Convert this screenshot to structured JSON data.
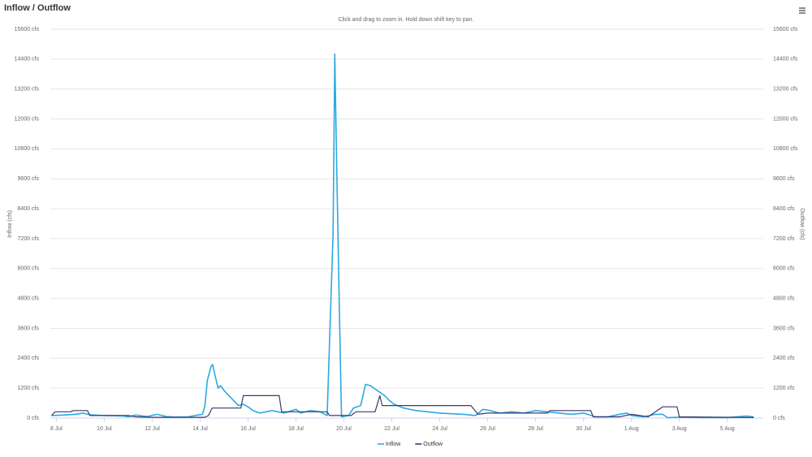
{
  "chart_data": {
    "type": "line",
    "title": "Inflow / Outflow",
    "subtitle": "Click and drag to zoom in. Hold down shift key to pan.",
    "y_label": "Inflow (cfs)",
    "y2_label": "Outflow (cfs)",
    "xlim": [
      7.75,
      37.5
    ],
    "xticks": [
      {
        "value": 8,
        "label": "8 Jul"
      },
      {
        "value": 10,
        "label": "10 Jul"
      },
      {
        "value": 12,
        "label": "12 Jul"
      },
      {
        "value": 14,
        "label": "14 Jul"
      },
      {
        "value": 16,
        "label": "16 Jul"
      },
      {
        "value": 18,
        "label": "18 Jul"
      },
      {
        "value": 20,
        "label": "20 Jul"
      },
      {
        "value": 22,
        "label": "22 Jul"
      },
      {
        "value": 24,
        "label": "24 Jul"
      },
      {
        "value": 26,
        "label": "26 Jul"
      },
      {
        "value": 28,
        "label": "28 Jul"
      },
      {
        "value": 30,
        "label": "30 Jul"
      },
      {
        "value": 32,
        "label": "1 Aug"
      },
      {
        "value": 34,
        "label": "3 Aug"
      },
      {
        "value": 36,
        "label": "5 Aug"
      }
    ],
    "ylim": [
      0,
      15600
    ],
    "yticks": [
      {
        "value": 0,
        "label": "0 cfs"
      },
      {
        "value": 1200,
        "label": "1200 cfs"
      },
      {
        "value": 2400,
        "label": "2400 cfs"
      },
      {
        "value": 3600,
        "label": "3600 cfs"
      },
      {
        "value": 4800,
        "label": "4800 cfs"
      },
      {
        "value": 6000,
        "label": "6000 cfs"
      },
      {
        "value": 7200,
        "label": "7200 cfs"
      },
      {
        "value": 8400,
        "label": "8400 cfs"
      },
      {
        "value": 9600,
        "label": "9600 cfs"
      },
      {
        "value": 10800,
        "label": "10800 cfs"
      },
      {
        "value": 12000,
        "label": "12000 cfs"
      },
      {
        "value": 13200,
        "label": "13200 cfs"
      },
      {
        "value": 14400,
        "label": "14400 cfs"
      },
      {
        "value": 15600,
        "label": "15600 cfs"
      }
    ],
    "y2lim": [
      0,
      15600
    ],
    "y2ticks": [
      {
        "value": 0,
        "label": "0 cfs"
      },
      {
        "value": 1200,
        "label": "1200 cfs"
      },
      {
        "value": 2400,
        "label": "2400 cfs"
      },
      {
        "value": 3600,
        "label": "3600 cfs"
      },
      {
        "value": 4800,
        "label": "4800 cfs"
      },
      {
        "value": 6000,
        "label": "6000 cfs"
      },
      {
        "value": 7200,
        "label": "7200 cfs"
      },
      {
        "value": 8400,
        "label": "8400 cfs"
      },
      {
        "value": 9600,
        "label": "9600 cfs"
      },
      {
        "value": 10800,
        "label": "10800 cfs"
      },
      {
        "value": 12000,
        "label": "12000 cfs"
      },
      {
        "value": 13200,
        "label": "13200 cfs"
      },
      {
        "value": 14400,
        "label": "14400 cfs"
      },
      {
        "value": 15600,
        "label": "15600 cfs"
      }
    ],
    "grid": true,
    "legend": "bottom",
    "series": [
      {
        "name": "Inflow",
        "color": "#2ba9e1",
        "x": [
          7.8,
          8.3,
          8.8,
          9.1,
          9.4,
          10,
          10.8,
          11,
          11.3,
          11.8,
          12.2,
          12.6,
          13,
          13.5,
          13.9,
          14.1,
          14.2,
          14.3,
          14.45,
          14.52,
          14.6,
          14.75,
          14.85,
          15,
          15.3,
          15.6,
          15.8,
          16,
          16.2,
          16.5,
          17,
          17.5,
          18,
          18.2,
          18.6,
          19,
          19.3,
          19.55,
          19.62,
          19.68,
          19.75,
          19.82,
          19.9,
          20.2,
          20.4,
          20.7,
          20.9,
          21.1,
          21.4,
          21.7,
          21.9,
          22.1,
          22.5,
          23,
          23.5,
          24,
          25,
          25.5,
          25.8,
          26.1,
          26.5,
          27,
          27.5,
          28,
          28.5,
          29,
          29.5,
          30,
          30.5,
          31,
          31.5,
          31.8,
          32,
          32.5,
          33,
          33.3,
          33.5,
          34,
          35,
          36,
          36.8,
          37.1
        ],
        "values": [
          100,
          120,
          150,
          200,
          130,
          100,
          80,
          50,
          120,
          60,
          150,
          60,
          40,
          50,
          120,
          150,
          500,
          1500,
          2050,
          2150,
          1800,
          1200,
          1300,
          1100,
          800,
          500,
          550,
          450,
          300,
          200,
          300,
          200,
          350,
          200,
          300,
          250,
          100,
          7400,
          14600,
          11100,
          7400,
          3900,
          50,
          100,
          400,
          500,
          1350,
          1300,
          1100,
          900,
          700,
          550,
          400,
          300,
          250,
          200,
          150,
          100,
          350,
          300,
          200,
          250,
          200,
          300,
          250,
          200,
          150,
          200,
          50,
          50,
          150,
          200,
          100,
          50,
          150,
          150,
          20,
          30,
          20,
          20,
          80,
          50
        ]
      },
      {
        "name": "Outflow",
        "color": "#3b3a6b",
        "axis": "y2",
        "x": [
          7.8,
          7.95,
          8.6,
          8.7,
          9.3,
          9.4,
          11,
          11.3,
          12,
          14.2,
          14.35,
          14.5,
          15.7,
          15.8,
          17.3,
          17.4,
          19.3,
          19.4,
          20.3,
          20.5,
          21.3,
          21.5,
          21.6,
          25.3,
          25.6,
          26,
          28.5,
          28.6,
          30.3,
          30.4,
          31.5,
          32,
          32.7,
          33.3,
          33.9,
          34,
          37.1
        ],
        "values": [
          100,
          250,
          250,
          300,
          300,
          100,
          100,
          50,
          30,
          30,
          100,
          400,
          400,
          900,
          900,
          250,
          250,
          100,
          100,
          250,
          250,
          900,
          500,
          500,
          150,
          200,
          200,
          300,
          300,
          50,
          50,
          150,
          50,
          450,
          450,
          50,
          20
        ]
      }
    ]
  }
}
